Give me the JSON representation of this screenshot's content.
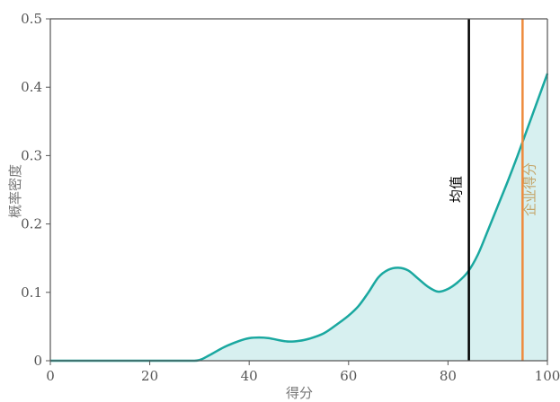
{
  "chart_data": {
    "type": "area",
    "xlabel": "得分",
    "ylabel": "概率密度",
    "xlim": [
      0,
      100
    ],
    "ylim": [
      0,
      0.5
    ],
    "xticks": [
      0,
      20,
      40,
      60,
      80,
      100
    ],
    "yticks": [
      0,
      0.1,
      0.2,
      0.3,
      0.4,
      0.5
    ],
    "ytick_labels": [
      "0",
      "0.1",
      "0.2",
      "0.3",
      "0.4",
      "0.5"
    ],
    "series": [
      {
        "x": [
          0,
          10,
          20,
          28,
          30,
          32,
          35,
          38,
          40,
          42,
          44,
          46,
          48,
          50,
          52,
          55,
          58,
          60,
          62,
          64,
          66,
          68,
          70,
          72,
          74,
          76,
          78,
          80,
          82,
          84,
          86,
          88,
          90,
          92,
          94,
          96,
          98,
          100
        ],
        "y": [
          0,
          0,
          0,
          0,
          0.001,
          0.008,
          0.02,
          0.029,
          0.033,
          0.034,
          0.033,
          0.03,
          0.028,
          0.029,
          0.032,
          0.04,
          0.055,
          0.066,
          0.08,
          0.1,
          0.122,
          0.133,
          0.136,
          0.132,
          0.12,
          0.108,
          0.101,
          0.105,
          0.115,
          0.13,
          0.155,
          0.19,
          0.226,
          0.262,
          0.3,
          0.34,
          0.38,
          0.42
        ],
        "color": "#1aa8a0",
        "fill": "#d7f0f0"
      }
    ],
    "vlines": [
      {
        "x": 84.2,
        "label": "均值",
        "color": "#000000"
      },
      {
        "x": 95,
        "label": "企业得分",
        "color": "#ee8a3c",
        "label_color": "#c4a56a"
      }
    ],
    "grid": false,
    "legend": "none"
  }
}
